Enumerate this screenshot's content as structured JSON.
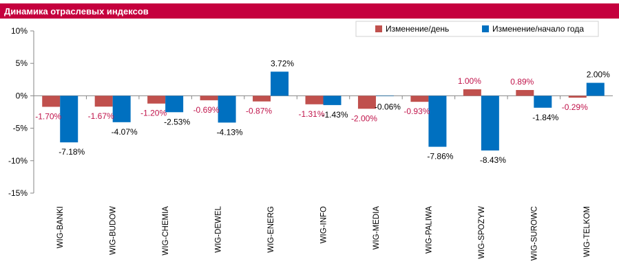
{
  "header": {
    "title": "Динамика отраслевых индексов"
  },
  "colors": {
    "header": "#c5003e",
    "day": "#c0504d",
    "ytd": "#0070c0",
    "day_label": "#c0134a"
  },
  "chart_data": {
    "type": "bar",
    "title": "",
    "xlabel": "",
    "ylabel": "",
    "ylim": [
      -15,
      10
    ],
    "yticks": [
      10,
      5,
      0,
      -5,
      -10,
      -15
    ],
    "ytick_labels": [
      "10%",
      "5%",
      "0%",
      "-5%",
      "-10%",
      "-15%"
    ],
    "grid": false,
    "legend_position": "top-right",
    "categories": [
      "WIG-BANKI",
      "WIG-BUDOW",
      "WIG-CHEMIA",
      "WIG-DEWEL",
      "WIG-ENERG",
      "WIG-INFO",
      "WIG-MEDIA",
      "WIG-PALIWA",
      "WIG-SPOZYW",
      "WIG-SUROWC",
      "WIG-TELKOM"
    ],
    "series": [
      {
        "name": "Изменение/день",
        "values": [
          -1.7,
          -1.67,
          -1.2,
          -0.69,
          -0.87,
          -1.31,
          -2.0,
          -0.93,
          1.0,
          0.89,
          -0.29
        ],
        "labels": [
          "-1.70%",
          "-1.67%",
          "-1.20%",
          "-0.69%",
          "-0.87%",
          "-1.31%",
          "-2.00%",
          "-0.93%",
          "1.00%",
          "0.89%",
          "-0.29%"
        ]
      },
      {
        "name": "Изменение/начало года",
        "values": [
          -7.18,
          -4.07,
          -2.53,
          -4.13,
          3.72,
          -1.43,
          -0.06,
          -7.86,
          -8.43,
          -1.84,
          2.0
        ],
        "labels": [
          "-7.18%",
          "-4.07%",
          "-2.53%",
          "-4.13%",
          "3.72%",
          "-1.43%",
          "-0.06%",
          "-7.86%",
          "-8.43%",
          "-1.84%",
          "2.00%"
        ]
      }
    ]
  }
}
